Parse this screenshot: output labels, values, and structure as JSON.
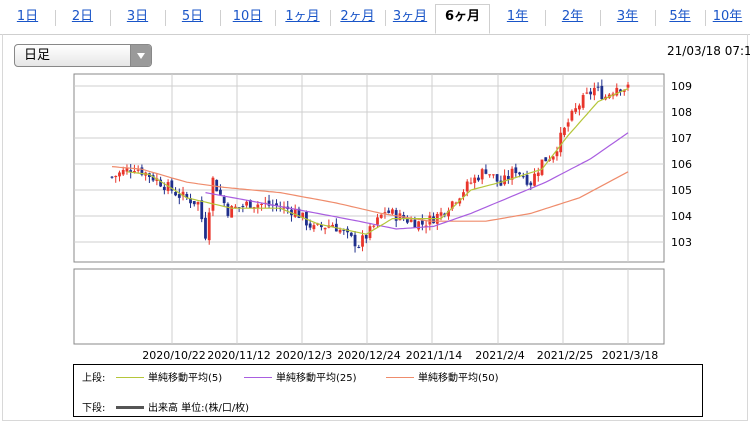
{
  "tabs": [
    {
      "label": "1日",
      "active": false
    },
    {
      "label": "2日",
      "active": false
    },
    {
      "label": "3日",
      "active": false
    },
    {
      "label": "5日",
      "active": false
    },
    {
      "label": "10日",
      "active": false
    },
    {
      "label": "1ヶ月",
      "active": false
    },
    {
      "label": "2ヶ月",
      "active": false
    },
    {
      "label": "3ヶ月",
      "active": false
    },
    {
      "label": "6ヶ月",
      "active": true
    },
    {
      "label": "1年",
      "active": false
    },
    {
      "label": "2年",
      "active": false
    },
    {
      "label": "3年",
      "active": false
    },
    {
      "label": "5年",
      "active": false
    },
    {
      "label": "10年",
      "active": false
    }
  ],
  "period_select": {
    "value": "日足"
  },
  "timestamp": "21/03/18 07:1",
  "colors": {
    "up": "#e8352b",
    "down": "#1f2f8c",
    "ma5": "#b5c63a",
    "ma25": "#a95ee0",
    "ma50": "#ef8c6c",
    "volume": "#555555"
  },
  "legend": {
    "upper_label": "上段:",
    "lower_label": "下段:",
    "ma5": "単純移動平均(5)",
    "ma25": "単純移動平均(25)",
    "ma50": "単純移動平均(50)",
    "volume": "出来高 単位:(株/口/枚)"
  },
  "chart_data": {
    "type": "candlestick",
    "x_tick_labels": [
      "2020/10/22",
      "2020/11/12",
      "2020/12/3",
      "2020/12/24",
      "2021/1/14",
      "2021/2/4",
      "2021/2/25",
      "2021/3/18"
    ],
    "y_tick_labels": [
      "103",
      "104",
      "105",
      "106",
      "107",
      "108",
      "109"
    ],
    "ylim": [
      102.5,
      109.5
    ],
    "anchors_close": [
      [
        0,
        105.5
      ],
      [
        6,
        105.9
      ],
      [
        12,
        105.4
      ],
      [
        18,
        104.8
      ],
      [
        23,
        104.5
      ],
      [
        25,
        103.3
      ],
      [
        27,
        105.4
      ],
      [
        31,
        104.2
      ],
      [
        37,
        104.5
      ],
      [
        43,
        104.4
      ],
      [
        49,
        104.2
      ],
      [
        54,
        103.5
      ],
      [
        59,
        103.7
      ],
      [
        63,
        103.2
      ],
      [
        66,
        102.9
      ],
      [
        69,
        103.4
      ],
      [
        73,
        104.2
      ],
      [
        78,
        103.9
      ],
      [
        83,
        103.7
      ],
      [
        88,
        104.1
      ],
      [
        92,
        104.7
      ],
      [
        96,
        105.3
      ],
      [
        100,
        105.8
      ],
      [
        104,
        105.2
      ],
      [
        108,
        105.8
      ],
      [
        112,
        105.3
      ],
      [
        115,
        106.1
      ],
      [
        118,
        106.4
      ],
      [
        122,
        107.6
      ],
      [
        125,
        108.3
      ],
      [
        129,
        108.9
      ],
      [
        132,
        108.6
      ],
      [
        135,
        109.0
      ],
      [
        138,
        108.9
      ]
    ],
    "ma5_anchors": [
      [
        4,
        105.7
      ],
      [
        10,
        105.6
      ],
      [
        20,
        104.7
      ],
      [
        26,
        104.5
      ],
      [
        32,
        104.3
      ],
      [
        45,
        104.3
      ],
      [
        55,
        103.7
      ],
      [
        68,
        103.3
      ],
      [
        75,
        103.9
      ],
      [
        88,
        103.9
      ],
      [
        96,
        105.0
      ],
      [
        104,
        105.3
      ],
      [
        115,
        105.8
      ],
      [
        122,
        107.1
      ],
      [
        130,
        108.4
      ],
      [
        138,
        108.9
      ]
    ],
    "ma25_anchors": [
      [
        25,
        104.9
      ],
      [
        40,
        104.5
      ],
      [
        55,
        104.1
      ],
      [
        66,
        103.8
      ],
      [
        76,
        103.5
      ],
      [
        86,
        103.6
      ],
      [
        96,
        104.1
      ],
      [
        106,
        104.7
      ],
      [
        116,
        105.3
      ],
      [
        128,
        106.2
      ],
      [
        138,
        107.2
      ]
    ],
    "ma50_anchors": [
      [
        0,
        105.9
      ],
      [
        8,
        105.8
      ],
      [
        20,
        105.3
      ],
      [
        30,
        105.1
      ],
      [
        45,
        104.9
      ],
      [
        60,
        104.5
      ],
      [
        72,
        104.1
      ],
      [
        85,
        103.8
      ],
      [
        100,
        103.8
      ],
      [
        112,
        104.1
      ],
      [
        125,
        104.7
      ],
      [
        138,
        105.7
      ]
    ]
  }
}
